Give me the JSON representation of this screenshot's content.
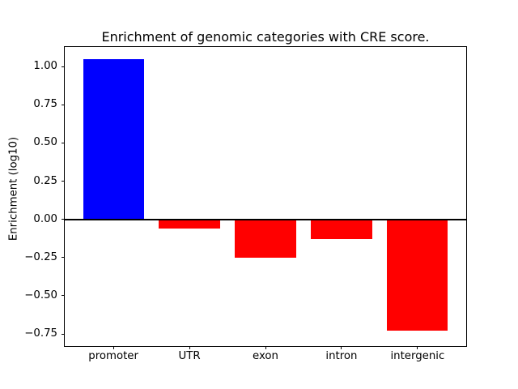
{
  "window": {
    "background": "#ffffff"
  },
  "chart_data": {
    "type": "bar",
    "title": "Enrichment of genomic categories with CRE score.",
    "xlabel": "",
    "ylabel": "Enrichment (log10)",
    "categories": [
      "promoter",
      "UTR",
      "exon",
      "intron",
      "intergenic"
    ],
    "values": [
      1.05,
      -0.06,
      -0.25,
      -0.13,
      -0.73
    ],
    "bar_colors": [
      "#0000ff",
      "#ff0000",
      "#ff0000",
      "#ff0000",
      "#ff0000"
    ],
    "positive_color": "#0000ff",
    "negative_color": "#ff0000",
    "yticks": [
      1.0,
      0.75,
      0.5,
      0.25,
      0.0,
      -0.25,
      -0.5,
      -0.75
    ],
    "ytick_labels": [
      "1.00",
      "0.75",
      "0.50",
      "0.25",
      "0.00",
      "−0.25",
      "−0.50",
      "−0.75"
    ],
    "ylim": [
      -0.83,
      1.13
    ],
    "xlim": [
      -0.64,
      4.64
    ],
    "bar_width": 0.8,
    "grid": false,
    "legend": "none",
    "zero_line": true,
    "axis_color": "#000000",
    "background": "#ffffff"
  }
}
